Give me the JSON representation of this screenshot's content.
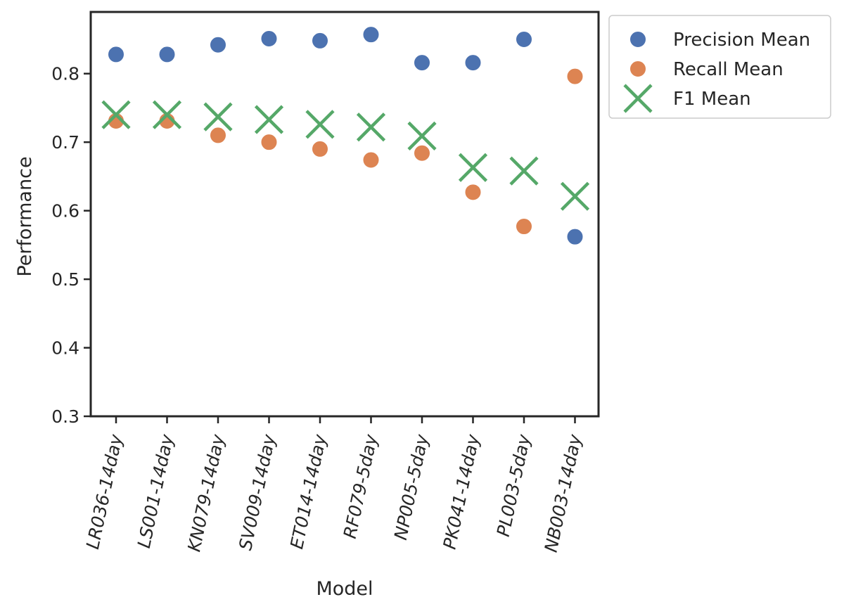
{
  "chart_data": {
    "type": "scatter",
    "title": "",
    "xlabel": "Model",
    "ylabel": "Performance",
    "ylim": [
      0.3,
      0.89
    ],
    "y_ticks": [
      "0.3",
      "0.4",
      "0.5",
      "0.6",
      "0.7",
      "0.8"
    ],
    "grid": false,
    "legend_position": "outside-top-right",
    "categories": [
      "LR036-14day",
      "LS001-14day",
      "KN079-14day",
      "SV009-14day",
      "ET014-14day",
      "RF079-5day",
      "NP005-5day",
      "PK041-14day",
      "PL003-5day",
      "NB003-14day"
    ],
    "series": [
      {
        "name": "Precision Mean",
        "marker": "circle",
        "color": "#4c72b0",
        "values": [
          0.828,
          0.828,
          0.842,
          0.851,
          0.848,
          0.857,
          0.816,
          0.816,
          0.85,
          0.562
        ]
      },
      {
        "name": "Recall Mean",
        "marker": "circle",
        "color": "#dd8452",
        "values": [
          0.731,
          0.731,
          0.71,
          0.7,
          0.69,
          0.674,
          0.684,
          0.627,
          0.577,
          0.796
        ]
      },
      {
        "name": "F1 Mean",
        "marker": "x",
        "color": "#55a868",
        "values": [
          0.74,
          0.74,
          0.737,
          0.733,
          0.726,
          0.722,
          0.709,
          0.663,
          0.658,
          0.621
        ]
      }
    ]
  }
}
